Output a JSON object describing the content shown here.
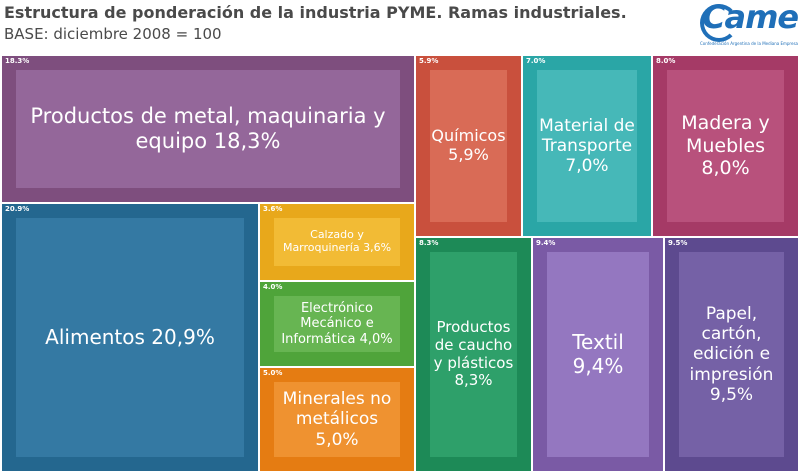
{
  "header": {
    "title": "Estructura de ponderación de la industria PYME. Ramas industriales.",
    "subtitle": "BASE: diciembre 2008 = 100"
  },
  "logo": {
    "text": "Came",
    "tagline": "Confederación Argentina de la Mediana Empresa"
  },
  "chart_data": {
    "type": "treemap",
    "title": "Estructura de ponderación de la industria PYME. Ramas industriales.",
    "subtitle": "BASE: diciembre 2008 = 100",
    "unit": "%",
    "items": [
      {
        "id": "metal",
        "small_label": "18.3%",
        "label": "Productos de metal, maquinaria y equipo 18,3%",
        "value": 18.3,
        "color": "#7e4e7e",
        "inner_color": "#94679a"
      },
      {
        "id": "quimicos",
        "small_label": "5.9%",
        "label": "Químicos 5,9%",
        "value": 5.9,
        "color": "#c9503d",
        "inner_color": "#d96b56"
      },
      {
        "id": "transporte",
        "small_label": "7.0%",
        "label": "Material de Transporte 7,0%",
        "value": 7.0,
        "color": "#2aa6a6",
        "inner_color": "#46b8b8"
      },
      {
        "id": "madera",
        "small_label": "8.0%",
        "label": "Madera y Muebles 8,0%",
        "value": 8.0,
        "color": "#a53a66",
        "inner_color": "#b8517c"
      },
      {
        "id": "alimentos",
        "small_label": "20.9%",
        "label": "Alimentos 20,9%",
        "value": 20.9,
        "color": "#24678f",
        "inner_color": "#3479a3"
      },
      {
        "id": "calzado",
        "small_label": "3.6%",
        "label": "Calzado y Marroquinería 3,6%",
        "value": 3.6,
        "color": "#e8a81b",
        "inner_color": "#f2bb35"
      },
      {
        "id": "electronico",
        "small_label": "4.0%",
        "label": "Electrónico Mecánico e Informática 4,0%",
        "value": 4.0,
        "color": "#4fa43a",
        "inner_color": "#67b552"
      },
      {
        "id": "minerales",
        "small_label": "5.0%",
        "label": "Minerales no metálicos 5,0%",
        "value": 5.0,
        "color": "#e57c12",
        "inner_color": "#ef9230"
      },
      {
        "id": "caucho",
        "small_label": "8.3%",
        "label": "Productos de caucho y plásticos 8,3%",
        "value": 8.3,
        "color": "#1d8a57",
        "inner_color": "#2ea06a"
      },
      {
        "id": "textil",
        "small_label": "9.4%",
        "label": "Textil 9,4%",
        "value": 9.4,
        "color": "#7a5aa5",
        "inner_color": "#9477c0"
      },
      {
        "id": "papel",
        "small_label": "9.5%",
        "label": "Papel, cartón, edición e impresión 9,5%",
        "value": 9.5,
        "color": "#5d4a8f",
        "inner_color": "#7561a6"
      }
    ]
  }
}
